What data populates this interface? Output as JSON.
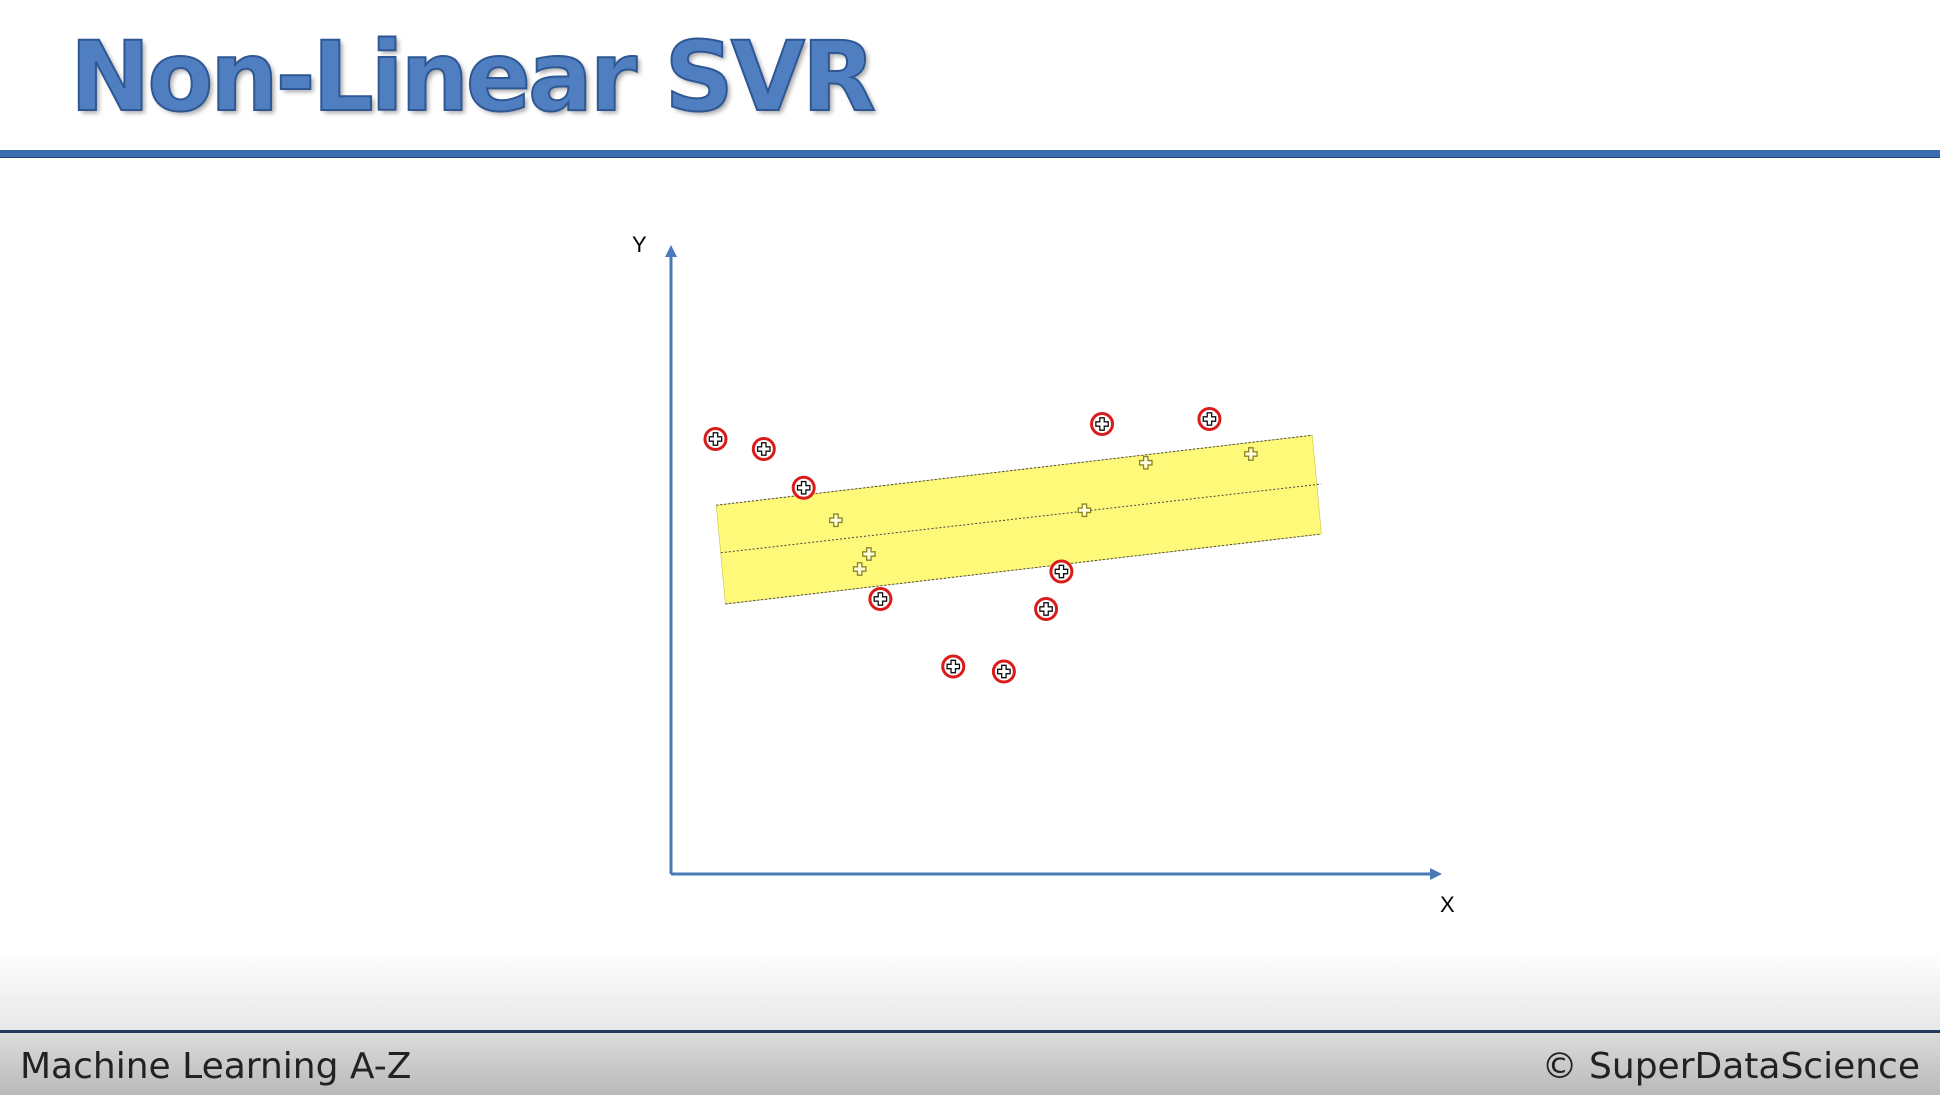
{
  "slide": {
    "title": "Non-Linear SVR",
    "footer_left": "Machine Learning A-Z",
    "footer_right": "© SuperDataScience"
  },
  "colors": {
    "title": "#4f7ec1",
    "rule": "#3a6db0",
    "axis": "#4a7ab8",
    "tube": "#fff97a",
    "outlier_ring": "#d91b1b"
  },
  "chart_data": {
    "type": "scatter",
    "xlabel": "X",
    "ylabel": "Y",
    "xlim": [
      0,
      100
    ],
    "ylim": [
      0,
      100
    ],
    "grid": false,
    "legend": "none",
    "tube": {
      "center": {
        "x1": 6.5,
        "y1": 51.4,
        "x2": 84.8,
        "y2": 62.4
      },
      "epsilon_top": {
        "x1": 5.9,
        "y1": 59.0,
        "x2": 83.6,
        "y2": 70.2
      },
      "epsilon_bottom": {
        "x1": 7.1,
        "y1": 43.2,
        "x2": 84.8,
        "y2": 54.4
      }
    },
    "series": [
      {
        "role": "inside-tube",
        "points": [
          {
            "x": 21.5,
            "y": 56.6
          },
          {
            "x": 25.8,
            "y": 51.2
          },
          {
            "x": 24.6,
            "y": 48.8
          },
          {
            "x": 53.9,
            "y": 58.2
          },
          {
            "x": 61.9,
            "y": 65.8
          },
          {
            "x": 75.6,
            "y": 67.2
          }
        ]
      },
      {
        "role": "outside-tube",
        "points": [
          {
            "x": 5.8,
            "y": 69.6
          },
          {
            "x": 12.1,
            "y": 68.0
          },
          {
            "x": 17.3,
            "y": 61.8
          },
          {
            "x": 27.3,
            "y": 44.0
          },
          {
            "x": 36.8,
            "y": 33.2
          },
          {
            "x": 43.4,
            "y": 32.4
          },
          {
            "x": 48.9,
            "y": 42.4
          },
          {
            "x": 50.9,
            "y": 48.4
          },
          {
            "x": 56.2,
            "y": 72.0
          },
          {
            "x": 70.2,
            "y": 72.8
          }
        ]
      }
    ]
  }
}
